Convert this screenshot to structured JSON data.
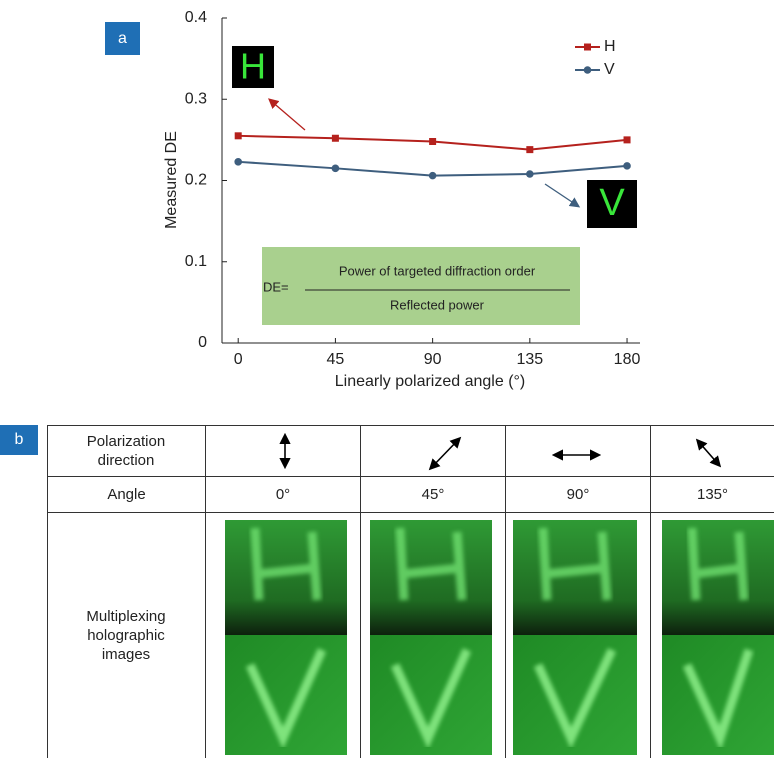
{
  "panel_a": "a",
  "panel_b": "b",
  "chart_data": {
    "type": "line",
    "x": [
      0,
      45,
      90,
      135,
      180
    ],
    "series": [
      {
        "name": "H",
        "color": "#b5211d",
        "marker": "square",
        "values": [
          0.255,
          0.252,
          0.248,
          0.238,
          0.25
        ]
      },
      {
        "name": "V",
        "color": "#3e5e7e",
        "marker": "circle",
        "values": [
          0.223,
          0.215,
          0.206,
          0.208,
          0.218
        ]
      }
    ],
    "xlim": [
      -7.5,
      186
    ],
    "ylim": [
      0,
      0.4
    ],
    "xticks": [
      0,
      45,
      90,
      135,
      180
    ],
    "yticks": [
      0,
      0.1,
      0.2,
      0.3,
      0.4
    ],
    "x_label": "Linearly polarized angle (°)",
    "y_label": "Measured DE",
    "legend": "top-right",
    "annotations": {
      "h_letter": "H",
      "v_letter": "V",
      "formula_lhs": "DE=",
      "numerator": "Power of targeted diffraction order",
      "denominator": "Reflected power"
    }
  },
  "table": {
    "rows": [
      {
        "label": "Polarization direction"
      },
      {
        "label": "Angle",
        "cells": [
          "0°",
          "45°",
          "90°",
          "135°"
        ]
      },
      {
        "label": "Multiplexing holographic images"
      }
    ]
  }
}
